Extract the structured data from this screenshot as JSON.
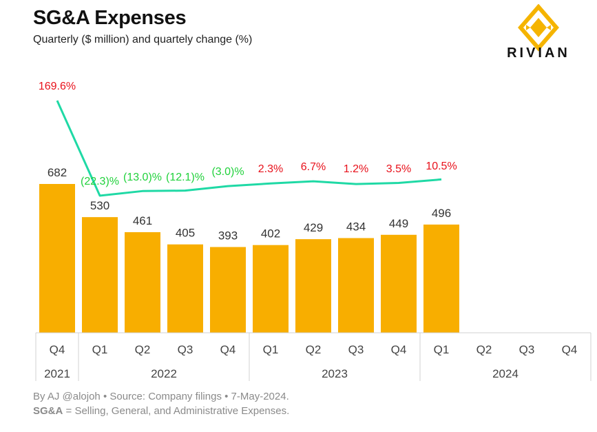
{
  "title": "SG&A Expenses",
  "subtitle": "Quarterly ($ million) and quartely change (%)",
  "logo": {
    "text": "RIVIAN",
    "color": "#f5b400"
  },
  "footer": {
    "credit": "By AJ @alojoh • Source: Company filings • 7-May-2024.",
    "def_term": "SG&A",
    "def_text": " = Selling, General, and Administrative Expenses."
  },
  "colors": {
    "bar": "#f8ae00",
    "line": "#1fd9a5",
    "positive": "#e8101a",
    "negative": "#1fd13a",
    "axis": "#d0d0d0"
  },
  "chart_data": {
    "type": "bar",
    "categories": [
      "Q4",
      "Q1",
      "Q2",
      "Q3",
      "Q4",
      "Q1",
      "Q2",
      "Q3",
      "Q4",
      "Q1",
      "Q2",
      "Q3",
      "Q4"
    ],
    "years": [
      {
        "label": "2021",
        "span": 1
      },
      {
        "label": "2022",
        "span": 4
      },
      {
        "label": "2023",
        "span": 4
      },
      {
        "label": "2024",
        "span": 4
      }
    ],
    "values": [
      682,
      530,
      461,
      405,
      393,
      402,
      429,
      434,
      449,
      496,
      null,
      null,
      null
    ],
    "value_labels": [
      "682",
      "530",
      "461",
      "405",
      "393",
      "402",
      "429",
      "434",
      "449",
      "496",
      "",
      "",
      ""
    ],
    "change_values": [
      169.6,
      -22.3,
      -13.0,
      -12.1,
      -3.0,
      2.3,
      6.7,
      1.2,
      3.5,
      10.5,
      null,
      null,
      null
    ],
    "change_labels": [
      "169.6%",
      "(22.3)%",
      "(13.0)%",
      "(12.1)%",
      "(3.0)%",
      "2.3%",
      "6.7%",
      "1.2%",
      "3.5%",
      "10.5%",
      "",
      "",
      ""
    ],
    "ylim": [
      0,
      700
    ]
  }
}
